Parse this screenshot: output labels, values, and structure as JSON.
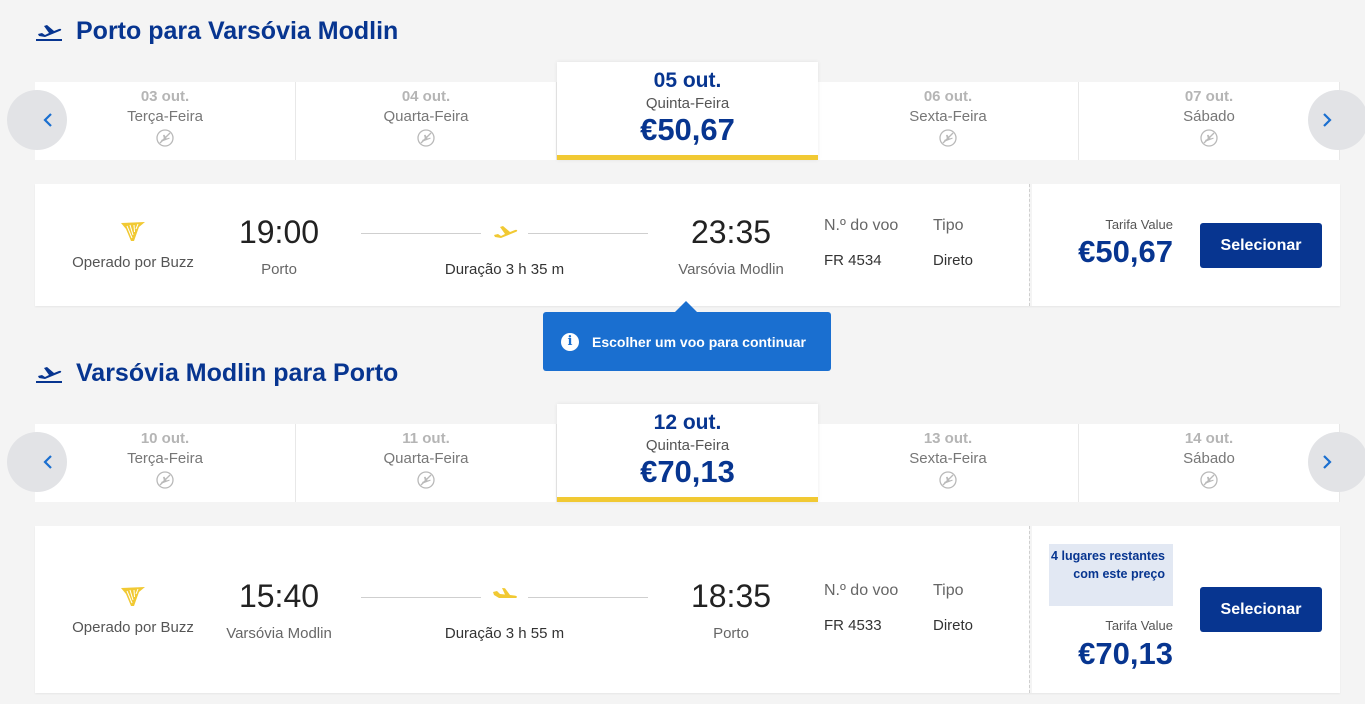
{
  "outbound": {
    "title": "Porto para Varsóvia Modlin",
    "dates": [
      {
        "date": "03 out.",
        "weekday": "Terça-Feira",
        "price": null,
        "selected": false
      },
      {
        "date": "04 out.",
        "weekday": "Quarta-Feira",
        "price": null,
        "selected": false
      },
      {
        "date": "05 out.",
        "weekday": "Quinta-Feira",
        "price": "€50,67",
        "selected": true
      },
      {
        "date": "06 out.",
        "weekday": "Sexta-Feira",
        "price": null,
        "selected": false
      },
      {
        "date": "07 out.",
        "weekday": "Sábado",
        "price": null,
        "selected": false
      }
    ],
    "flight": {
      "operator": "Operado por Buzz",
      "departure_time": "19:00",
      "departure_city": "Porto",
      "duration": "Duração 3 h 35 m",
      "arrival_time": "23:35",
      "arrival_city": "Varsóvia Modlin",
      "flight_no_label": "N.º do voo",
      "flight_no": "FR 4534",
      "type_label": "Tipo",
      "type": "Direto",
      "fare_label": "Tarifa Value",
      "fare_price": "€50,67",
      "select_label": "Selecionar"
    }
  },
  "tooltip": {
    "icon": "info-icon",
    "text": "Escolher um voo para continuar"
  },
  "inbound": {
    "title": "Varsóvia Modlin para Porto",
    "dates": [
      {
        "date": "10 out.",
        "weekday": "Terça-Feira",
        "price": null,
        "selected": false
      },
      {
        "date": "11 out.",
        "weekday": "Quarta-Feira",
        "price": null,
        "selected": false
      },
      {
        "date": "12 out.",
        "weekday": "Quinta-Feira",
        "price": "€70,13",
        "selected": true
      },
      {
        "date": "13 out.",
        "weekday": "Sexta-Feira",
        "price": null,
        "selected": false
      },
      {
        "date": "14 out.",
        "weekday": "Sábado",
        "price": null,
        "selected": false
      }
    ],
    "flight": {
      "operator": "Operado por Buzz",
      "departure_time": "15:40",
      "departure_city": "Varsóvia Modlin",
      "duration": "Duração 3 h 55 m",
      "arrival_time": "18:35",
      "arrival_city": "Porto",
      "flight_no_label": "N.º do voo",
      "flight_no": "FR 4533",
      "type_label": "Tipo",
      "type": "Direto",
      "seats_badge": "4 lugares restantes com este preço",
      "fare_label": "Tarifa Value",
      "fare_price": "€70,13",
      "select_label": "Selecionar"
    }
  },
  "colors": {
    "brand_blue": "#073590",
    "accent_yellow": "#f1c933",
    "tooltip_blue": "#1a6fd0"
  },
  "icons": {
    "title": "plane-takeoff-icon",
    "no_flight": "no-flight-icon",
    "prev": "chevron-left-icon",
    "next": "chevron-right-icon",
    "operator_logo": "ryanair-harp-logo"
  }
}
